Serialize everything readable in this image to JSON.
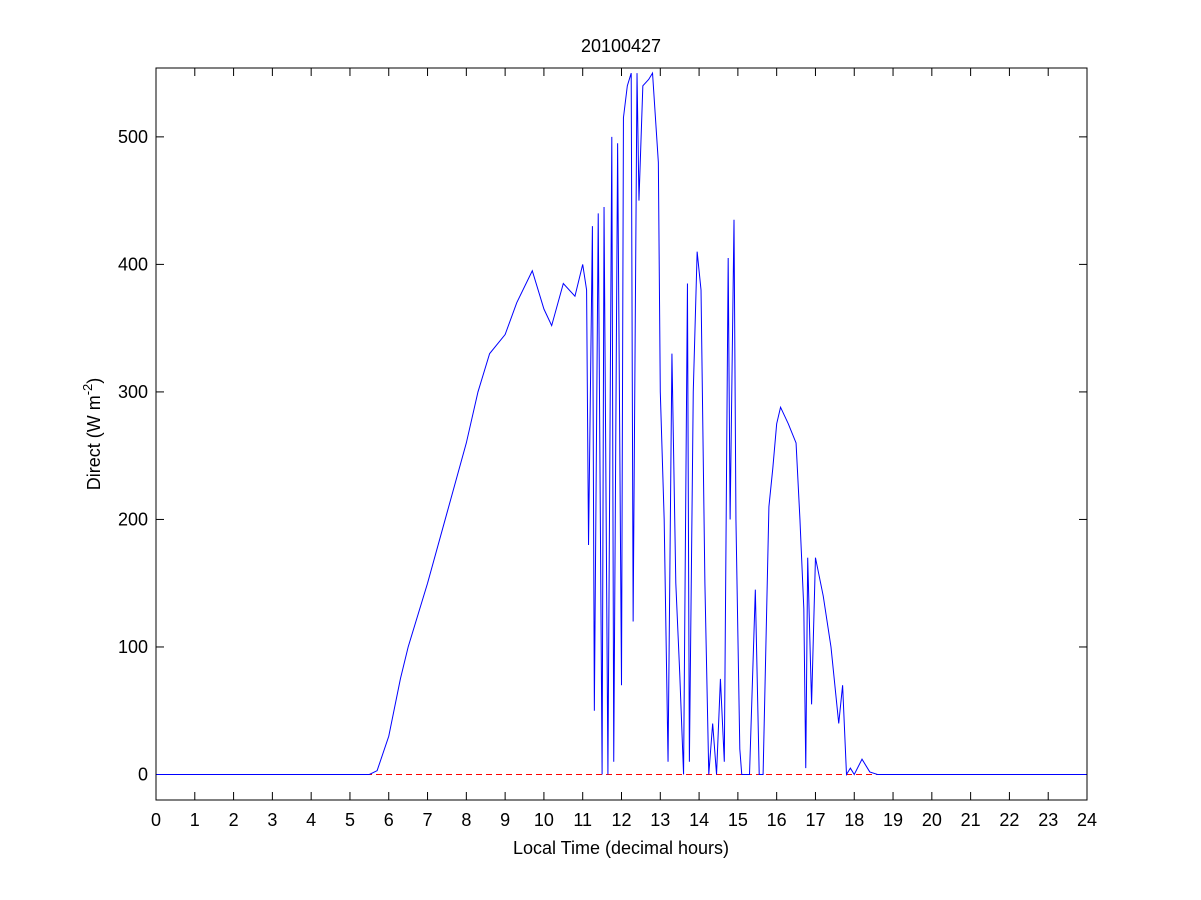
{
  "chart_data": {
    "type": "line",
    "title": "20100427",
    "xlabel": "Local Time (decimal hours)",
    "ylabel": [
      "Direct (W m",
      "-2",
      ")"
    ],
    "x": [
      0,
      5.5,
      5.7,
      6,
      6.3,
      6.5,
      7,
      7.5,
      8,
      8.3,
      8.6,
      9,
      9.3,
      9.7,
      10,
      10.2,
      10.5,
      10.8,
      11,
      11.1,
      11.15,
      11.25,
      11.3,
      11.4,
      11.5,
      11.55,
      11.65,
      11.75,
      11.8,
      11.9,
      12.0,
      12.05,
      12.15,
      12.25,
      12.3,
      12.4,
      12.45,
      12.55,
      12.7,
      12.8,
      12.95,
      13.0,
      13.1,
      13.2,
      13.3,
      13.4,
      13.5,
      13.6,
      13.7,
      13.75,
      13.85,
      13.95,
      14.05,
      14.15,
      14.25,
      14.35,
      14.45,
      14.55,
      14.65,
      14.75,
      14.8,
      14.9,
      14.95,
      15.05,
      15.1,
      15.3,
      15.45,
      15.55,
      15.65,
      15.8,
      15.9,
      16.0,
      16.1,
      16.3,
      16.5,
      16.6,
      16.7,
      16.75,
      16.8,
      16.9,
      17.0,
      17.2,
      17.4,
      17.6,
      17.7,
      17.8,
      17.9,
      18.0,
      18.2,
      18.4,
      18.6,
      24
    ],
    "series": [
      {
        "color": "#0000ff",
        "values": [
          0,
          0,
          3,
          30,
          75,
          100,
          150,
          205,
          260,
          300,
          330,
          345,
          370,
          395,
          365,
          352,
          385,
          375,
          400,
          380,
          180,
          430,
          50,
          440,
          0,
          445,
          0,
          500,
          10,
          495,
          70,
          515,
          540,
          550,
          120,
          550,
          450,
          540,
          545,
          550,
          480,
          300,
          200,
          10,
          330,
          150,
          80,
          0,
          385,
          10,
          300,
          410,
          380,
          150,
          0,
          40,
          0,
          75,
          10,
          405,
          200,
          435,
          200,
          20,
          0,
          0,
          145,
          0,
          0,
          210,
          240,
          275,
          288,
          275,
          260,
          200,
          130,
          5,
          170,
          55,
          170,
          140,
          100,
          40,
          70,
          0,
          5,
          0,
          12,
          2,
          0,
          0
        ]
      }
    ],
    "reference_line": {
      "value": 0,
      "color": "#ff0000"
    },
    "xlim": [
      0,
      24
    ],
    "xticks": [
      0,
      1,
      2,
      3,
      4,
      5,
      6,
      7,
      8,
      9,
      10,
      11,
      12,
      13,
      14,
      15,
      16,
      17,
      18,
      19,
      20,
      21,
      22,
      23,
      24
    ],
    "ylim": [
      -20,
      554
    ],
    "yticks": [
      0,
      100,
      200,
      300,
      400,
      500
    ]
  }
}
